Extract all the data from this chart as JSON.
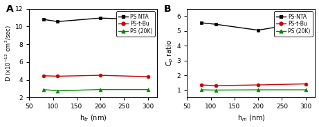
{
  "x": [
    80,
    110,
    200,
    300
  ],
  "panel_A": {
    "label": "A",
    "PS_NTA": [
      10.8,
      10.55,
      10.95,
      10.75
    ],
    "PS_tBu": [
      4.45,
      4.4,
      4.5,
      4.35
    ],
    "PS_20K": [
      2.9,
      2.75,
      2.9,
      2.9
    ],
    "ylabel": "D (x10$^{-12}$ cm$^{2}$/sec)",
    "xlabel": "h$_{tr}$ (nm)",
    "ylim": [
      2,
      12
    ],
    "yticks": [
      2,
      4,
      6,
      8,
      10,
      12
    ]
  },
  "panel_B": {
    "label": "B",
    "PS_NTA": [
      5.55,
      5.45,
      5.05,
      5.6
    ],
    "PS_tBu": [
      1.35,
      1.3,
      1.35,
      1.42
    ],
    "PS_20K": [
      1.02,
      1.0,
      1.02,
      1.02
    ],
    "ylabel": "C$_p$ ratio",
    "xlabel": "h$_{m}$ (nm)",
    "ylim": [
      0.5,
      6.5
    ],
    "yticks": [
      1,
      2,
      3,
      4,
      5,
      6
    ]
  },
  "colors": {
    "PS_NTA": "#000000",
    "PS_tBu": "#cc0000",
    "PS_20K": "#008800"
  },
  "legend_A": [
    "PS NTA",
    "PS-t-Bu",
    "PS (20K)"
  ],
  "legend_B": [
    "PS-NTA",
    "PS-t-Bu",
    "PS (20K)"
  ],
  "xlim": [
    50,
    320
  ],
  "xticks": [
    50,
    100,
    150,
    200,
    250,
    300
  ],
  "bg_color": "#ffffff"
}
